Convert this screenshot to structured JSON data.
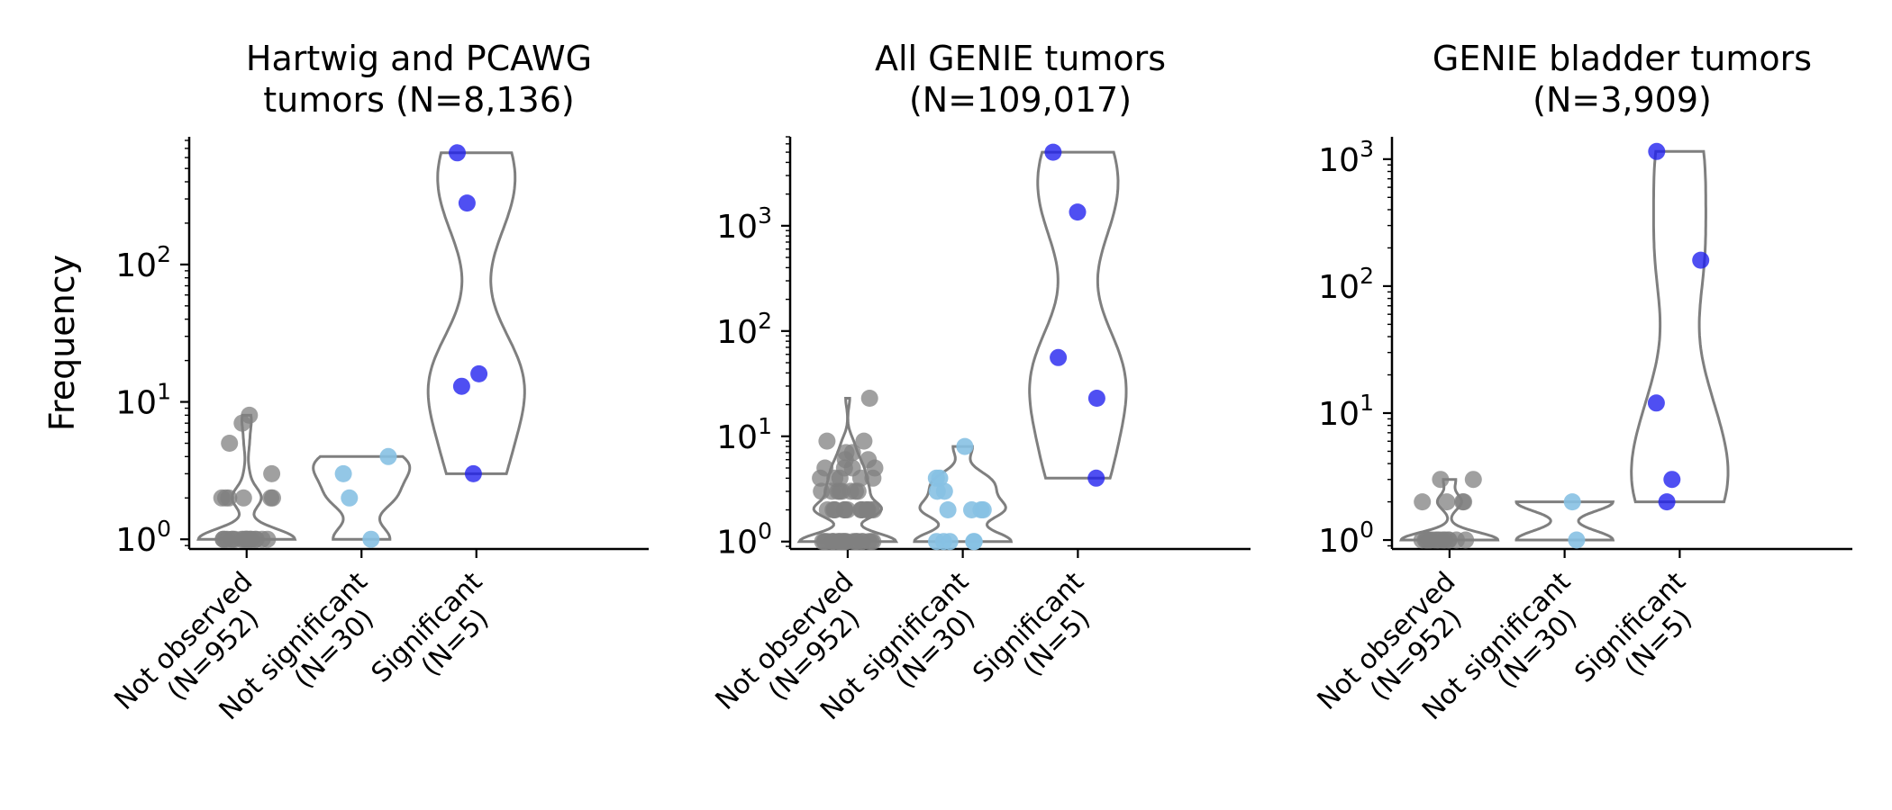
{
  "figure": {
    "ylabel": "Frequency",
    "categories": [
      {
        "line1": "Not observed",
        "line2": "(N=952)"
      },
      {
        "line1": "Not significant",
        "line2": "(N=30)"
      },
      {
        "line1": "Significant",
        "line2": "(N=5)"
      }
    ],
    "colors": {
      "not_observed": "#808080",
      "not_significant": "#87c1e3",
      "significant": "#1d1dee",
      "violin": "#7f7f7f",
      "axis": "#000000"
    }
  },
  "chart_data": [
    {
      "type": "violin",
      "title": [
        "Hartwig and PCAWG",
        "tumors (N=8,136)"
      ],
      "ylabel": "Frequency",
      "yscale": "log",
      "ylim": [
        0.85,
        850
      ],
      "yticks": [
        1,
        10,
        100
      ],
      "categories": [
        "Not observed (N=952)",
        "Not significant (N=30)",
        "Significant (N=5)"
      ],
      "points": [
        [
          1,
          1,
          1,
          1,
          1,
          1,
          1,
          1,
          1,
          1,
          1,
          1,
          1,
          1,
          1,
          1,
          1,
          1,
          1,
          1,
          2,
          2,
          2,
          2,
          2,
          2,
          3,
          5,
          7,
          8
        ],
        [
          1,
          2,
          3,
          4
        ],
        [
          3,
          13,
          16,
          280,
          650
        ]
      ]
    },
    {
      "type": "violin",
      "title": [
        "All GENIE tumors",
        "(N=109,017)"
      ],
      "ylabel": "",
      "yscale": "log",
      "ylim": [
        0.85,
        7000
      ],
      "yticks": [
        1,
        10,
        100,
        1000
      ],
      "categories": [
        "Not observed (N=952)",
        "Not significant (N=30)",
        "Significant (N=5)"
      ],
      "points": [
        [
          1,
          1,
          1,
          1,
          1,
          1,
          1,
          1,
          1,
          1,
          1,
          1,
          1,
          1,
          1,
          1,
          1,
          1,
          1,
          1,
          1,
          1,
          1,
          1,
          2,
          2,
          2,
          2,
          2,
          2,
          2,
          2,
          2,
          2,
          2,
          2,
          2,
          2,
          2,
          2,
          3,
          3,
          3,
          3,
          3,
          3,
          3,
          3,
          4,
          4,
          4,
          4,
          4,
          5,
          5,
          5,
          5,
          6,
          6,
          7,
          7,
          9,
          9,
          23
        ],
        [
          1,
          1,
          1,
          1,
          1,
          2,
          2,
          2,
          2,
          3,
          3,
          4,
          4,
          8
        ],
        [
          4,
          23,
          56,
          1350,
          5000
        ]
      ]
    },
    {
      "type": "violin",
      "title": [
        "GENIE bladder tumors",
        "(N=3,909)"
      ],
      "ylabel": "",
      "yscale": "log",
      "ylim": [
        0.85,
        1500
      ],
      "yticks": [
        1,
        10,
        100,
        1000
      ],
      "categories": [
        "Not observed (N=952)",
        "Not significant (N=30)",
        "Significant (N=5)"
      ],
      "points": [
        [
          1,
          1,
          1,
          1,
          1,
          1,
          1,
          1,
          1,
          1,
          1,
          1,
          1,
          1,
          1,
          1,
          2,
          2,
          2,
          2,
          3,
          3
        ],
        [
          1,
          2
        ],
        [
          2,
          3,
          12,
          160,
          1150
        ]
      ]
    }
  ]
}
